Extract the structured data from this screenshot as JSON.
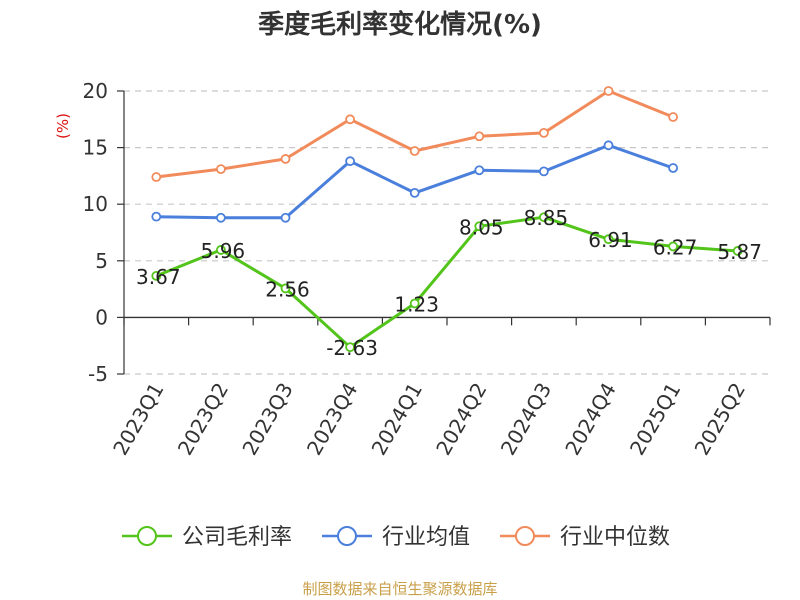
{
  "chart_data": {
    "type": "line",
    "title": "季度毛利率变化情况(%)",
    "unit_label": "(%)",
    "categories": [
      "2023Q1",
      "2023Q2",
      "2023Q3",
      "2023Q4",
      "2024Q1",
      "2024Q2",
      "2024Q3",
      "2024Q4",
      "2025Q1",
      "2025Q2"
    ],
    "ylim": [
      -5,
      20
    ],
    "yticks": [
      -5,
      0,
      5,
      10,
      15,
      20
    ],
    "grid": true,
    "legend_position": "bottom",
    "series": [
      {
        "name": "公司毛利率",
        "color": "#52c41a",
        "values": [
          3.67,
          5.96,
          2.56,
          -2.63,
          1.23,
          8.05,
          8.85,
          6.91,
          6.27,
          5.87
        ],
        "labels": [
          "3.67",
          "5.96",
          "2.56",
          "-2.63",
          "1.23",
          "8.05",
          "8.85",
          "6.91",
          "6.27",
          "5.87"
        ]
      },
      {
        "name": "行业均值",
        "color": "#4a7fdc",
        "values": [
          8.9,
          8.8,
          8.8,
          13.8,
          11.0,
          13.0,
          12.9,
          15.2,
          13.2,
          null
        ]
      },
      {
        "name": "行业中位数",
        "color": "#f28b5b",
        "values": [
          12.4,
          13.1,
          14.0,
          17.5,
          14.7,
          16.0,
          16.3,
          20.0,
          17.7,
          null
        ]
      }
    ],
    "source": "制图数据来自恒生聚源数据库"
  }
}
